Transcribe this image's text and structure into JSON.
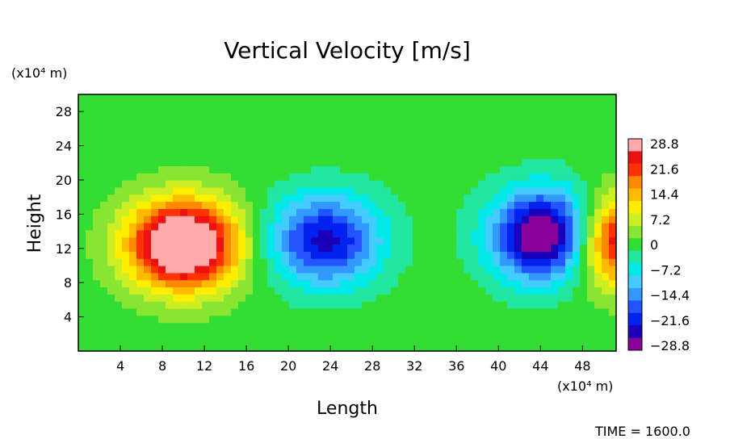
{
  "chart_data": {
    "type": "heatmap",
    "title": "Vertical Velocity [m/s]",
    "xlabel": "Length",
    "ylabel": "Height",
    "x_unit": "(x10⁴ m)",
    "y_unit": "(x10⁴ m)",
    "x_ticks": [
      "4",
      "8",
      "12",
      "16",
      "20",
      "24",
      "28",
      "32",
      "36",
      "40",
      "44",
      "48"
    ],
    "y_ticks": [
      "4",
      "8",
      "12",
      "16",
      "20",
      "24",
      "28"
    ],
    "xlim": [
      0,
      51.2
    ],
    "ylim": [
      0,
      30
    ],
    "colorbar": {
      "labels": [
        "28.8",
        "21.6",
        "14.4",
        "7.2",
        "0",
        "−7.2",
        "−14.4",
        "−21.6",
        "−28.8"
      ],
      "range": [
        -28.8,
        28.8
      ]
    },
    "features": [
      {
        "sign": "positive",
        "center": [
          10,
          12.5
        ],
        "peak": 28.8
      },
      {
        "sign": "negative",
        "center": [
          23.5,
          13
        ],
        "peak": -18
      },
      {
        "sign": "negative",
        "center": [
          45,
          13.5
        ],
        "peak": -28.8
      },
      {
        "sign": "positive",
        "center": [
          51,
          13
        ],
        "peak": 25
      }
    ]
  },
  "footer": {
    "time_label": "TIME = 1600.0"
  }
}
